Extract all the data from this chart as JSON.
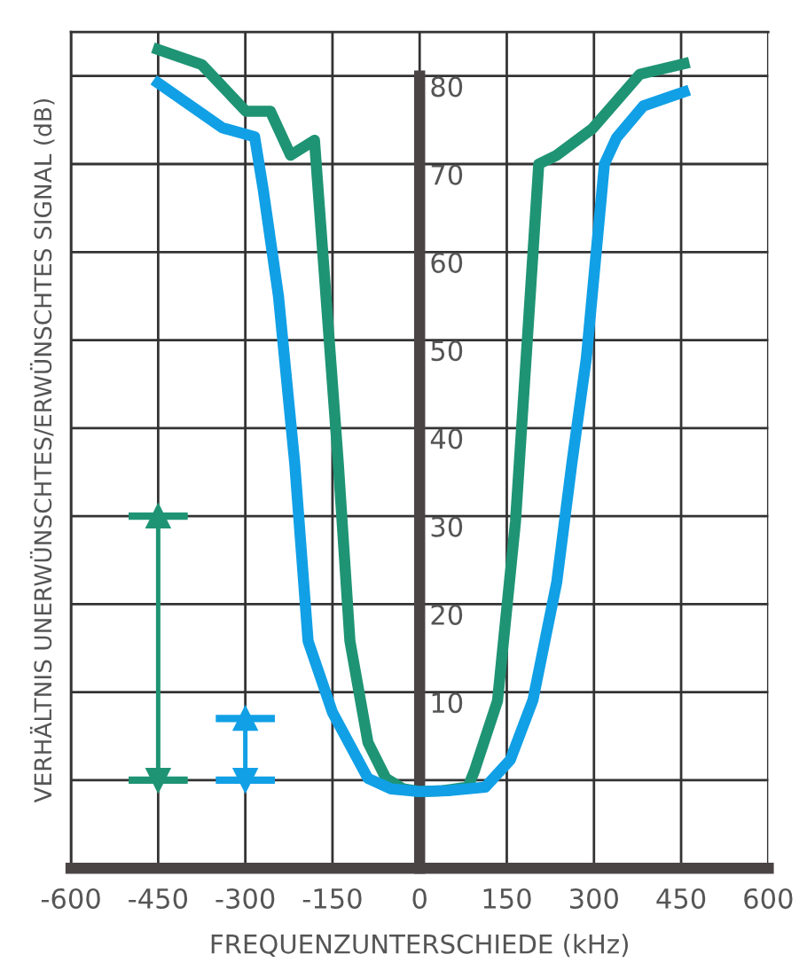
{
  "chart_data": {
    "type": "line",
    "xlabel": "FREQUENZUNTERSCHIEDE (kHz)",
    "ylabel": "VERHÄLTNIS UNERWÜNSCHTES/ERWÜNSCHTES SIGNAL (dB)",
    "xlim": [
      -600,
      600
    ],
    "ylim": [
      -10,
      85
    ],
    "xticks": [
      -600,
      -450,
      -300,
      -150,
      0,
      150,
      300,
      450,
      600
    ],
    "yticks": [
      {
        "value": 0,
        "label": null
      },
      10,
      20,
      30,
      40,
      50,
      60,
      70,
      80
    ],
    "grid": true,
    "marker": "none",
    "line_style": "solid",
    "series": [
      {
        "color": "#1f9474",
        "x": [
          -450,
          -375,
          -299,
          -257,
          -222,
          -181,
          -140,
          -120,
          -89,
          -58,
          -28,
          0,
          40,
          83,
          94,
          134,
          165,
          205,
          236,
          297,
          379,
          455
        ],
        "values": [
          83,
          81.3,
          76,
          76,
          71,
          72.7,
          36,
          15.8,
          4.3,
          0.2,
          -1,
          -1.3,
          -1.2,
          -0.8,
          1,
          9,
          29.4,
          70,
          71,
          74,
          80.2,
          81.4
        ]
      },
      {
        "color": "#11a0e6",
        "x": [
          -450,
          -339,
          -284,
          -269,
          -243,
          -215,
          -192,
          -150,
          -89,
          -49,
          0,
          50,
          113,
          156,
          195,
          236,
          262,
          287,
          318,
          339,
          385,
          455
        ],
        "values": [
          79.2,
          74.1,
          73.1,
          67,
          55,
          36,
          15.8,
          7.7,
          0.2,
          -1,
          -1.3,
          -1.2,
          -0.8,
          2.3,
          9.1,
          22.5,
          36,
          48,
          70,
          73,
          76.6,
          78.2
        ]
      },
      {
        "type": "line",
        "color": "#1f9474",
        "marker": "triangle",
        "x": [
          -450,
          -450
        ],
        "values": [
          0,
          30
        ]
      },
      {
        "type": "line",
        "color": "#11a0e6",
        "marker": "triangle",
        "x": [
          -300,
          -300
        ],
        "values": [
          0,
          7
        ]
      }
    ]
  }
}
